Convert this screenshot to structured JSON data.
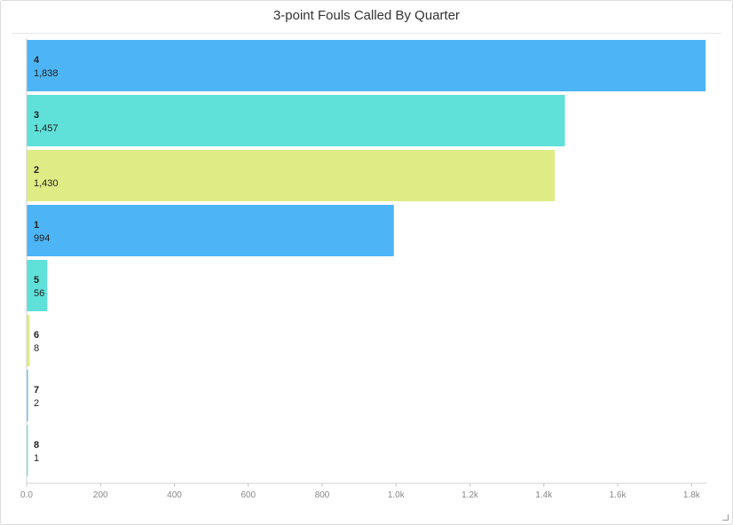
{
  "title": "3-point Fouls Called By Quarter",
  "chart_data": {
    "type": "bar",
    "orientation": "horizontal",
    "title": "3-point Fouls Called By Quarter",
    "categories": [
      "4",
      "3",
      "2",
      "1",
      "5",
      "6",
      "7",
      "8"
    ],
    "values": [
      1838,
      1457,
      1430,
      994,
      56,
      8,
      2,
      1
    ],
    "value_labels": [
      "1,838",
      "1,457",
      "1,430",
      "994",
      "56",
      "8",
      "2",
      "1"
    ],
    "colors": [
      "#4db5f5",
      "#5fe0d8",
      "#dfec85",
      "#4db5f5",
      "#5fe0d8",
      "#dfec85",
      "#4db5f5",
      "#5fe0d8"
    ],
    "xlim": [
      0,
      1840
    ],
    "xticks": [
      0,
      200,
      400,
      600,
      800,
      1000,
      1200,
      1400,
      1600,
      1800
    ],
    "xtick_labels": [
      "0.0",
      "200",
      "400",
      "600",
      "800",
      "1.0k",
      "1.2k",
      "1.4k",
      "1.6k",
      "1.8k"
    ],
    "xlabel": "",
    "ylabel": "",
    "grid": false,
    "legend": "none"
  }
}
